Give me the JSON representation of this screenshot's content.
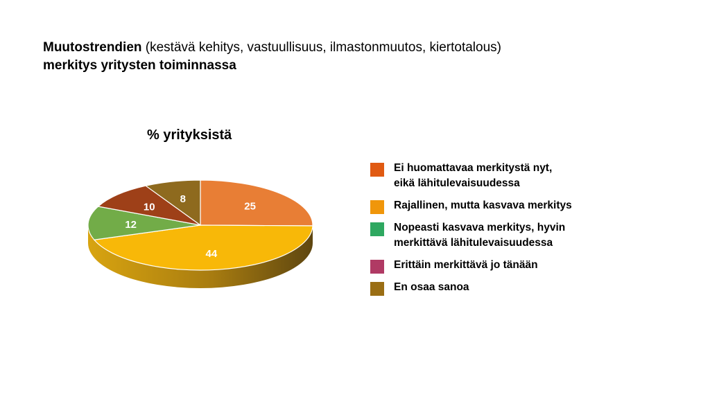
{
  "slide": {
    "title_bold_1": "Muutostrendien",
    "title_regular": " (kestävä kehitys, vastuullisuus, ilmastonmuutos, kiertotalous)",
    "title_bold_2": "merkitys yritysten toiminnassa"
  },
  "chart_data": {
    "type": "pie",
    "title": "% yrityksistä",
    "categories": [
      "Ei huomattavaa merkitystä nyt, eikä lähitulevaisuudessa",
      "Rajallinen, mutta kasvava merkitys",
      "Nopeasti kasvava merkitys, hyvin merkittävä lähitulevaisuudessa",
      "Erittäin merkittävä jo tänään",
      "En osaa sanoa"
    ],
    "legend_labels": [
      "Ei huomattavaa merkitystä nyt,\neikä lähitulevaisuudessa",
      "Rajallinen, mutta kasvava merkitys",
      "Nopeasti kasvava merkitys, hyvin\nmerkittävä lähitulevaisuudessa",
      "Erittäin merkittävä jo tänään",
      "En osaa sanoa"
    ],
    "values": [
      25,
      44,
      12,
      10,
      8
    ],
    "legend_colors": [
      "#e05a12",
      "#f0960a",
      "#2ea860",
      "#b03a64",
      "#9a6e14"
    ],
    "slice_colors": [
      "#e87e35",
      "#f8b808",
      "#72ac48",
      "#9e4018",
      "#8e6a1e"
    ],
    "data_labels": [
      "25",
      "44",
      "12",
      "10",
      "8"
    ],
    "legend_position": "right",
    "style": "3d"
  }
}
